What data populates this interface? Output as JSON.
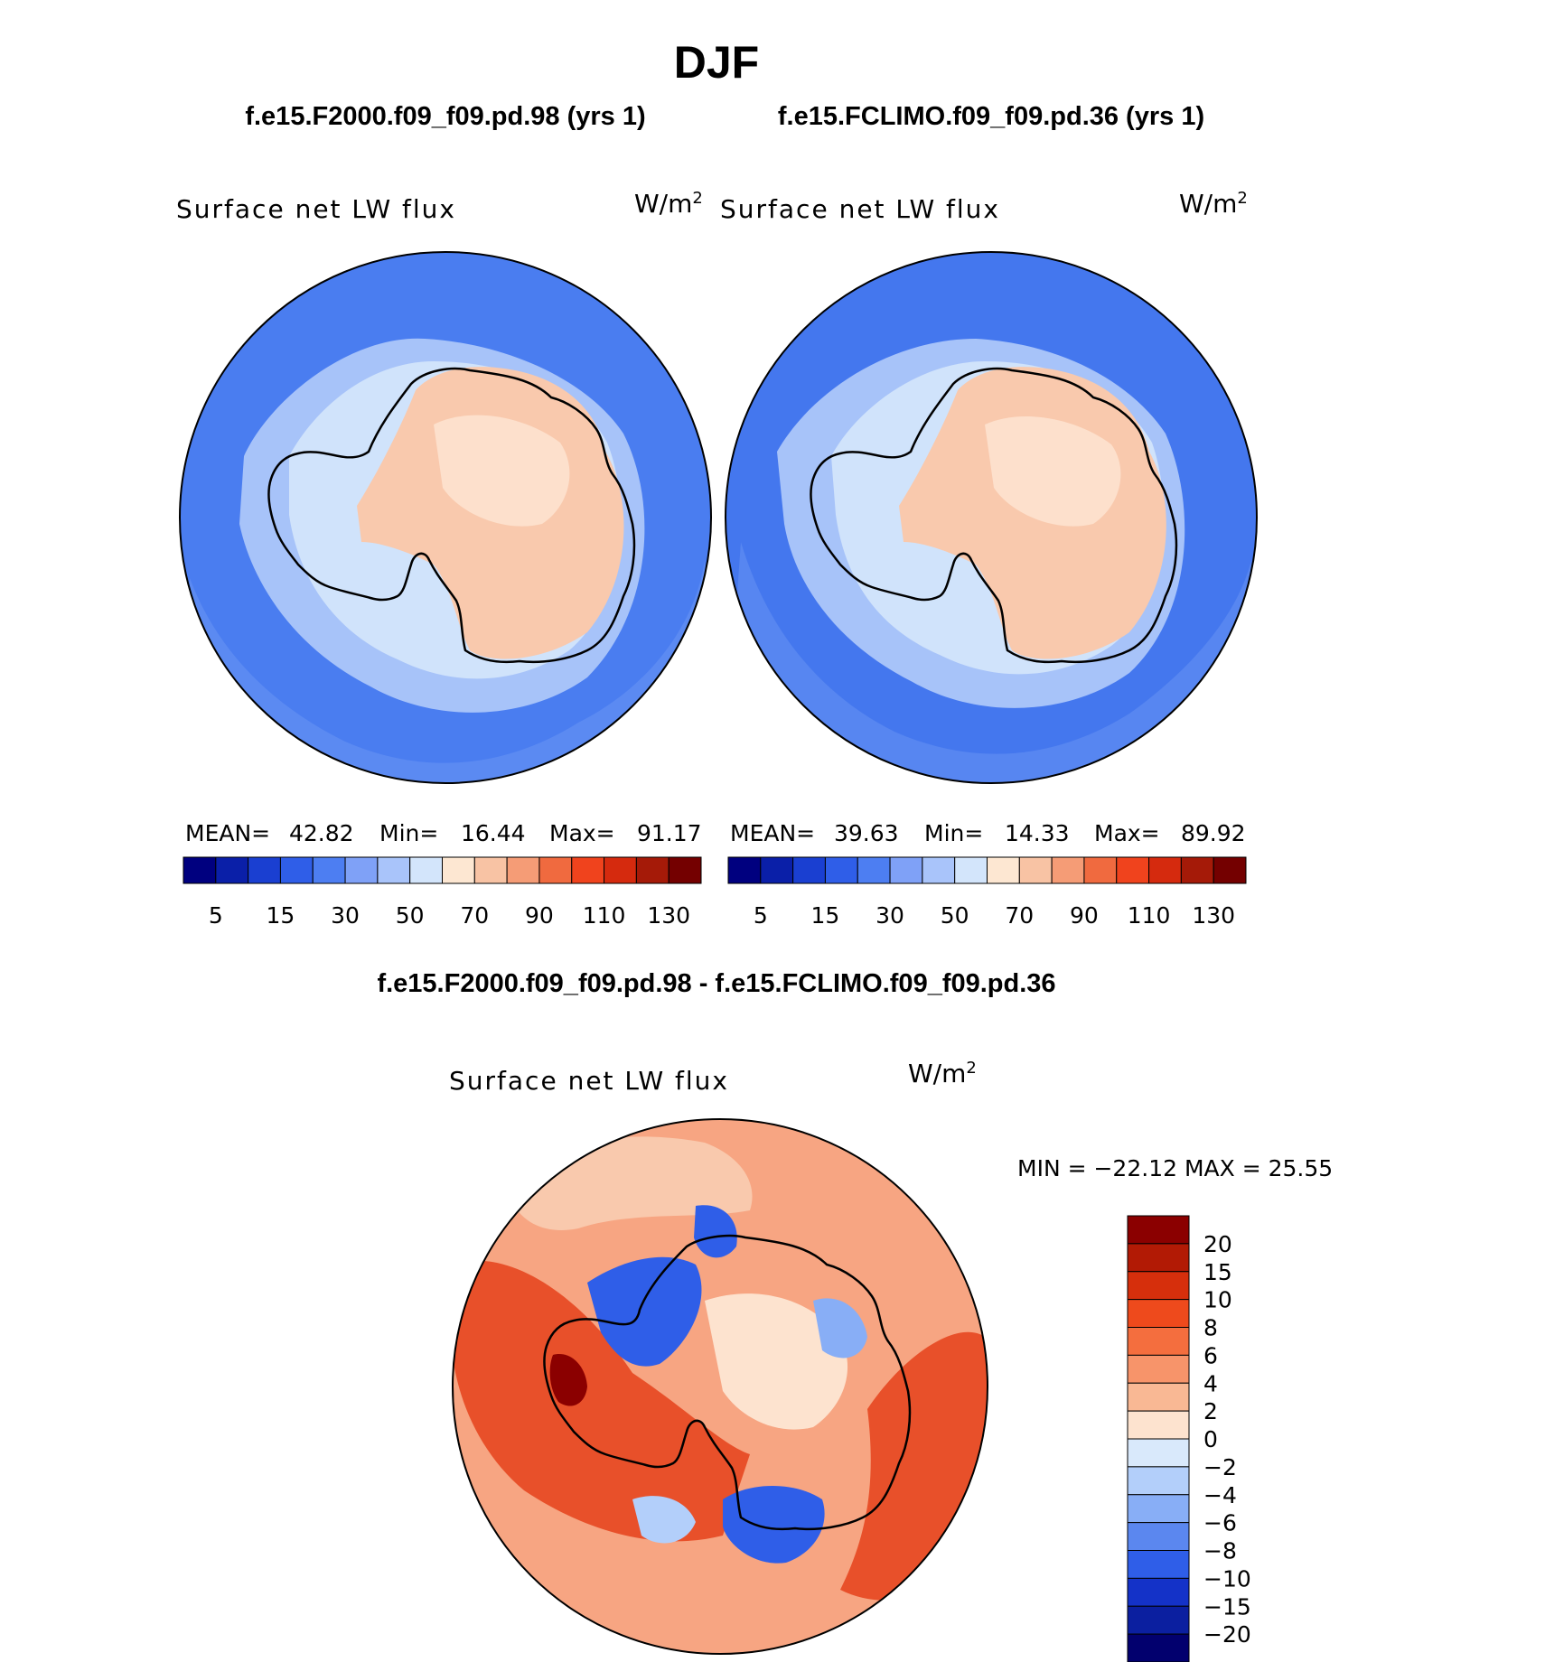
{
  "title": "DJF",
  "panels": [
    {
      "case": "f.e15.F2000.f09_f09.pd.98 (yrs 1)",
      "variable": "Surface net LW flux",
      "units": "W/m",
      "units_sup": "2",
      "stats": {
        "mean_label": "MEAN=",
        "mean": "42.82",
        "min_label": "Min=",
        "min": "16.44",
        "max_label": "Max=",
        "max": "91.17"
      }
    },
    {
      "case": "f.e15.FCLIMO.f09_f09.pd.36 (yrs 1)",
      "variable": "Surface net LW flux",
      "units": "W/m",
      "units_sup": "2",
      "stats": {
        "mean_label": "MEAN=",
        "mean": "39.63",
        "min_label": "Min=",
        "min": "14.33",
        "max_label": "Max=",
        "max": "89.92"
      }
    }
  ],
  "diff_panel": {
    "title": "f.e15.F2000.f09_f09.pd.98 - f.e15.FCLIMO.f09_f09.pd.36",
    "variable": "Surface net LW flux",
    "units": "W/m",
    "units_sup": "2",
    "minmax": "MIN = −22.12 MAX =   25.55"
  },
  "chart_data": [
    {
      "type": "heatmap",
      "projection": "south-polar-stereographic",
      "title": "f.e15.F2000.f09_f09.pd.98 (yrs 1)",
      "variable": "Surface net LW flux",
      "units": "W/m2",
      "mean": 42.82,
      "min": 16.44,
      "max": 91.17,
      "colorbar_orientation": "horizontal",
      "colorbar_ticks": [
        "5",
        "15",
        "30",
        "50",
        "70",
        "90",
        "110",
        "130"
      ],
      "colorbar_colors": [
        "#00007f",
        "#0a1fa8",
        "#1a3fd1",
        "#2f5ee8",
        "#4d7ef2",
        "#7fa1f7",
        "#a9c4fa",
        "#d3e5fb",
        "#fde7d2",
        "#f8c3a4",
        "#f59c76",
        "#f06a3f",
        "#f0431d",
        "#d52a0e",
        "#a51a08",
        "#740000"
      ],
      "regions": [
        "#4a7df0",
        "#6a96f4",
        "#a7c3f9",
        "#d0e3fb",
        "#f9c9ad",
        "#fde0cc"
      ]
    },
    {
      "type": "heatmap",
      "projection": "south-polar-stereographic",
      "title": "f.e15.FCLIMO.f09_f09.pd.36 (yrs 1)",
      "variable": "Surface net LW flux",
      "units": "W/m2",
      "mean": 39.63,
      "min": 14.33,
      "max": 89.92,
      "colorbar_orientation": "horizontal",
      "colorbar_ticks": [
        "5",
        "15",
        "30",
        "50",
        "70",
        "90",
        "110",
        "130"
      ],
      "colorbar_colors": [
        "#00007f",
        "#0a1fa8",
        "#1a3fd1",
        "#2f5ee8",
        "#4d7ef2",
        "#7fa1f7",
        "#a9c4fa",
        "#d3e5fb",
        "#fde7d2",
        "#f8c3a4",
        "#f59c76",
        "#f06a3f",
        "#f0431d",
        "#d52a0e",
        "#a51a08",
        "#740000"
      ],
      "regions": [
        "#4477ee",
        "#6a96f4",
        "#a7c3f9",
        "#d0e3fb",
        "#f9c9ad",
        "#fde0cc"
      ]
    },
    {
      "type": "heatmap",
      "projection": "south-polar-stereographic",
      "title": "f.e15.F2000.f09_f09.pd.98 - f.e15.FCLIMO.f09_f09.pd.36",
      "variable": "Surface net LW flux",
      "units": "W/m2",
      "min": -22.12,
      "max": 25.55,
      "colorbar_orientation": "vertical",
      "colorbar_ticks": [
        "20",
        "15",
        "10",
        "8",
        "6",
        "4",
        "2",
        "0",
        "−2",
        "−4",
        "−6",
        "−8",
        "−10",
        "−15",
        "−20"
      ],
      "colorbar_colors": [
        "#8b0000",
        "#b21a05",
        "#d62f0c",
        "#ee4a1c",
        "#f46e3e",
        "#f7946a",
        "#f9b894",
        "#fde3cf",
        "#d9e9fb",
        "#b3cffa",
        "#88aef6",
        "#5b87ef",
        "#2f5ee8",
        "#1432c8",
        "#0b1fa0",
        "#02006e"
      ],
      "regions": [
        "#f7a582",
        "#e8502a",
        "#f9c9ad",
        "#fde3cf",
        "#2f5ee8",
        "#88aef6",
        "#b3cffa",
        "#8b0000"
      ]
    }
  ]
}
